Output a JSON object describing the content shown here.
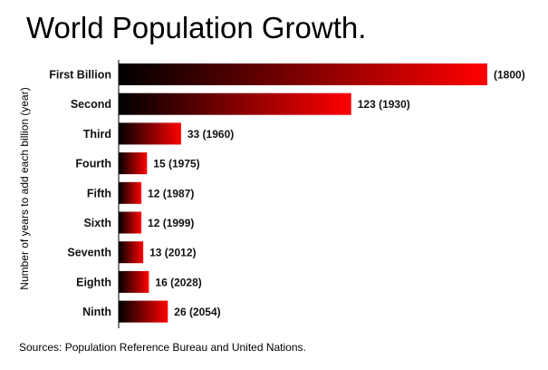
{
  "title": "World Population Growth.",
  "source": "Sources: Population Reference Bureau and United Nations.",
  "chart_data": {
    "type": "bar",
    "orientation": "horizontal",
    "title": "World Population Growth.",
    "xlabel": "",
    "ylabel": "Number of years to add each billion (year)",
    "categories": [
      "First Billion",
      "Second",
      "Third",
      "Fourth",
      "Fifth",
      "Sixth",
      "Seventh",
      "Eighth",
      "Ninth"
    ],
    "values": [
      195,
      123,
      33,
      15,
      12,
      12,
      13,
      16,
      26
    ],
    "data_labels": [
      "(1800)",
      "123 (1930)",
      "33 (1960)",
      "15 (1975)",
      "12 (1987)",
      "12 (1999)",
      "13 (2012)",
      "16 (2028)",
      "26 (2054)"
    ],
    "xlim": [
      0,
      195
    ],
    "grid": false,
    "legend": "none",
    "bar_gradient": [
      "#000000",
      "#ff0000"
    ]
  }
}
